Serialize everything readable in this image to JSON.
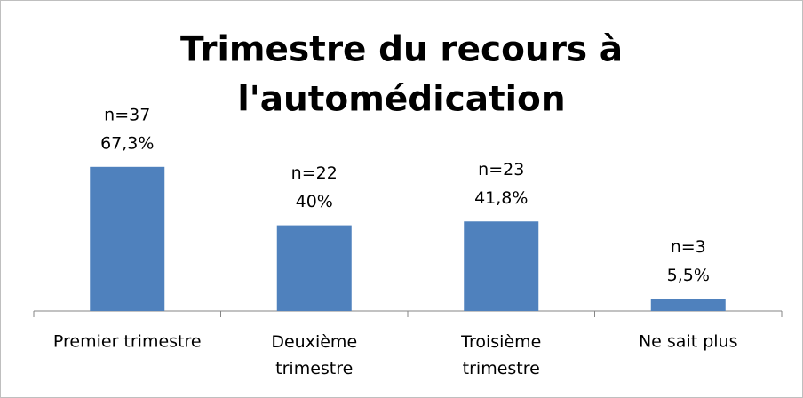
{
  "chart_data": {
    "type": "bar",
    "title": [
      "Trimestre du recours à",
      "l'automédication"
    ],
    "categories": [
      "Premier trimestre",
      "Deuxième trimestre",
      "Troisième trimestre",
      "Ne sait plus"
    ],
    "values": [
      67.3,
      40,
      41.8,
      5.5
    ],
    "value_labels": [
      "67,3%",
      "40%",
      "41,8%",
      "5,5%"
    ],
    "count_labels": [
      "n=37",
      "n=22",
      "n=23",
      "n=3"
    ],
    "color": "#4f81bd",
    "ylim": [
      0,
      100
    ]
  }
}
